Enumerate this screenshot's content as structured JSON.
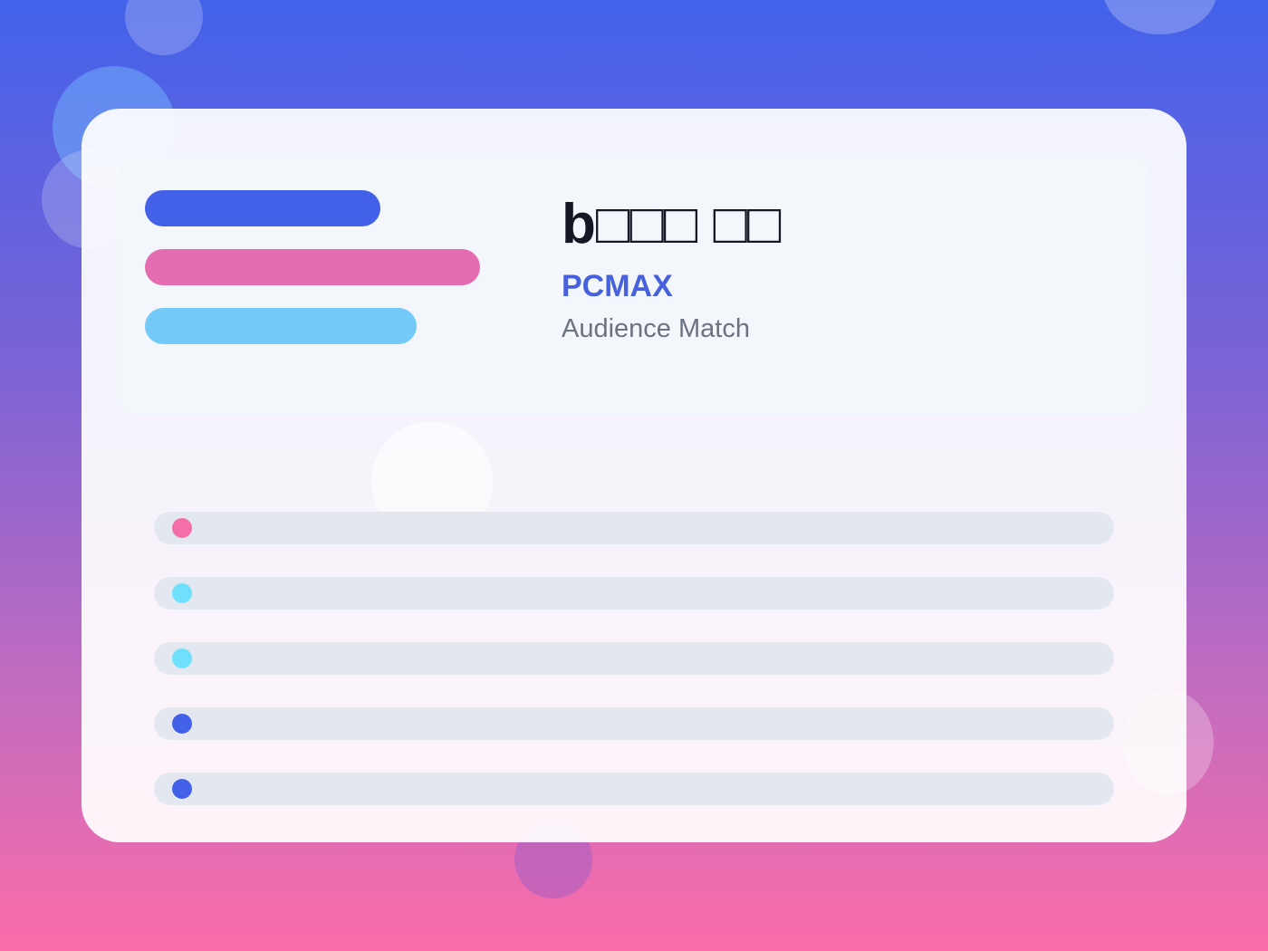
{
  "header": {
    "title": "b□□□ □□",
    "brand": "PCMAX",
    "subtitle": "Audience Match"
  }
}
